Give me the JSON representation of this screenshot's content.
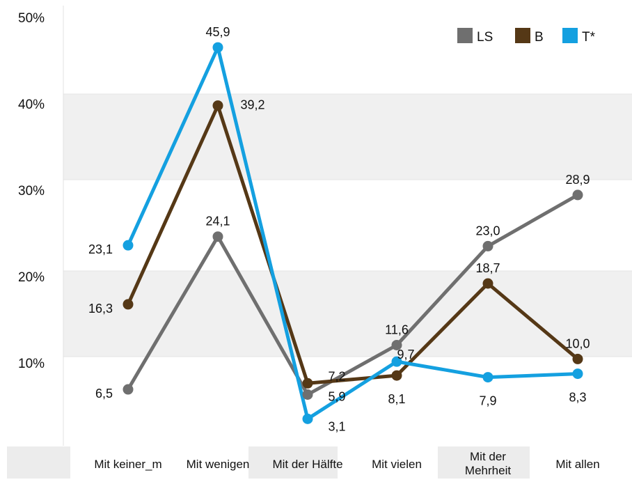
{
  "chart_data": {
    "type": "line",
    "categories": [
      "Mit keiner_m",
      "Mit wenigen",
      "Mit der Hälfte",
      "Mit vielen",
      "Mit der Mehrheit",
      "Mit allen"
    ],
    "y_ticks": [
      "50%",
      "40%",
      "30%",
      "20%",
      "10%"
    ],
    "ylim": [
      0,
      50
    ],
    "legend_position": "top-right",
    "series": [
      {
        "name": "LS",
        "color": "#6f6f6f",
        "values": [
          6.5,
          24.1,
          5.9,
          11.6,
          23.0,
          28.9
        ],
        "labels": [
          "6,5",
          "24,1",
          "5,9",
          "11,6",
          "23,0",
          "28,9"
        ]
      },
      {
        "name": "B",
        "color": "#553816",
        "values": [
          16.3,
          39.2,
          7.2,
          8.1,
          18.7,
          10.0
        ],
        "labels": [
          "16,3",
          "39,2",
          "7,2",
          "8,1",
          "18,7",
          "10,0"
        ]
      },
      {
        "name": "T*",
        "color": "#14a0e0",
        "values": [
          23.1,
          45.9,
          3.1,
          9.7,
          7.9,
          8.3
        ],
        "labels": [
          "23,1",
          "45,9",
          "3,1",
          "9,7",
          "7,9",
          "8,3"
        ]
      }
    ]
  }
}
